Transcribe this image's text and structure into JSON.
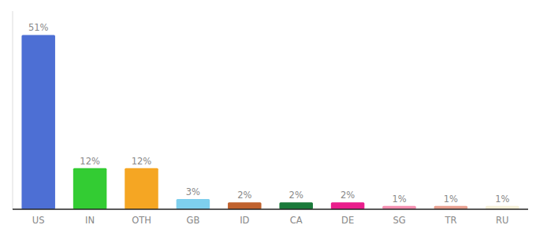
{
  "chart_data": {
    "type": "bar",
    "categories": [
      "US",
      "IN",
      "OTH",
      "GB",
      "ID",
      "CA",
      "DE",
      "SG",
      "TR",
      "RU"
    ],
    "values": [
      51,
      12,
      12,
      3,
      2,
      2,
      2,
      1,
      1,
      1
    ],
    "value_labels": [
      "51%",
      "12%",
      "12%",
      "3%",
      "2%",
      "2%",
      "2%",
      "1%",
      "1%",
      "1%"
    ],
    "colors": [
      "#4d6fd4",
      "#33cc33",
      "#f5a623",
      "#7ecfed",
      "#c0622e",
      "#1a7a3a",
      "#e91e8c",
      "#f48fb1",
      "#e8a090",
      "#f5f0d8"
    ],
    "ylim": [
      0,
      58
    ],
    "data_labels": true,
    "grid": false,
    "tick_labels": "x"
  }
}
